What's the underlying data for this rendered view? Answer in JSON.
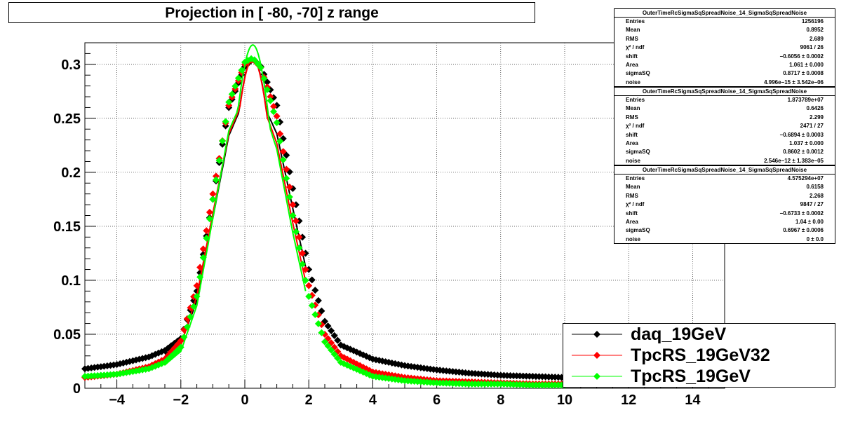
{
  "chart_data": {
    "type": "scatter",
    "title": "Projection in [ -80, -70] z range",
    "xlabel": "",
    "ylabel": "",
    "xlim": [
      -5,
      15
    ],
    "ylim": [
      0,
      0.32
    ],
    "x_ticks": [
      "−4",
      "−2",
      "0",
      "2",
      "4",
      "6",
      "8",
      "10",
      "12",
      "14"
    ],
    "x_tick_values": [
      -4,
      -2,
      0,
      2,
      4,
      6,
      8,
      10,
      12,
      14
    ],
    "y_ticks": [
      "0",
      "0.05",
      "0.1",
      "0.15",
      "0.2",
      "0.25",
      "0.3"
    ],
    "y_tick_values": [
      0,
      0.05,
      0.1,
      0.15,
      0.2,
      0.25,
      0.3
    ],
    "grid": true,
    "legend_position": "bottom-right",
    "series": [
      {
        "name": "daq_19GeV",
        "color": "#000000",
        "x": [
          -5,
          -4,
          -3,
          -2.5,
          -2,
          -1.5,
          -1,
          -0.5,
          0,
          0.25,
          0.5,
          1,
          1.5,
          2,
          2.5,
          3,
          4,
          5,
          6,
          7,
          8,
          9,
          10
        ],
        "y": [
          0.018,
          0.022,
          0.029,
          0.035,
          0.046,
          0.09,
          0.175,
          0.26,
          0.298,
          0.305,
          0.298,
          0.262,
          0.185,
          0.11,
          0.062,
          0.04,
          0.027,
          0.021,
          0.017,
          0.014,
          0.012,
          0.011,
          0.01
        ],
        "fit_peak": 0.306
      },
      {
        "name": "TpcRS_19GeV32",
        "color": "#ff0000",
        "x": [
          -5,
          -4,
          -3,
          -2.5,
          -2,
          -1.5,
          -1,
          -0.5,
          0,
          0.25,
          0.5,
          1,
          1.5,
          2,
          2.5,
          3,
          4,
          5,
          6,
          7,
          8,
          9,
          10
        ],
        "y": [
          0.01,
          0.013,
          0.02,
          0.027,
          0.044,
          0.095,
          0.18,
          0.262,
          0.3,
          0.305,
          0.297,
          0.252,
          0.17,
          0.095,
          0.05,
          0.03,
          0.015,
          0.01,
          0.007,
          0.006,
          0.005,
          0.004,
          0.004
        ],
        "fit_peak": 0.305
      },
      {
        "name": "TpcRS_19GeV",
        "color": "#00ff00",
        "x": [
          -5,
          -4,
          -3,
          -2.5,
          -2,
          -1.5,
          -1,
          -0.5,
          0,
          0.25,
          0.5,
          1,
          1.5,
          2,
          2.5,
          3,
          4,
          5,
          6,
          7,
          8,
          9,
          10
        ],
        "y": [
          0.011,
          0.013,
          0.018,
          0.024,
          0.038,
          0.085,
          0.175,
          0.265,
          0.302,
          0.306,
          0.297,
          0.246,
          0.16,
          0.085,
          0.043,
          0.024,
          0.011,
          0.007,
          0.005,
          0.004,
          0.004,
          0.003,
          0.003
        ],
        "fit_peak": 0.318
      }
    ],
    "stats": [
      {
        "title": "OuterTimeRcSigmaSqSpreadNoise_14_SigmaSqSpreadNoise",
        "rows": [
          {
            "k": "Entries",
            "v": "1256196"
          },
          {
            "k": "Mean",
            "v": "0.8952"
          },
          {
            "k": "RMS",
            "v": "2.689"
          },
          {
            "k": "χ² / ndf",
            "v": "9061 / 26"
          },
          {
            "k": "shift",
            "v": "−0.6056 ± 0.0002"
          },
          {
            "k": "Area",
            "v": "1.061 ± 0.000"
          },
          {
            "k": "sigmaSQ",
            "v": "0.8717 ± 0.0008"
          },
          {
            "k": "noise",
            "v": "4.996e−15 ± 3.542e−06"
          }
        ]
      },
      {
        "title": "OuterTimeRcSigmaSqSpreadNoise_14_SigmaSqSpreadNoise",
        "rows": [
          {
            "k": "Entries",
            "v": "1.873789e+07"
          },
          {
            "k": "Mean",
            "v": "0.6426"
          },
          {
            "k": "RMS",
            "v": "2.299"
          },
          {
            "k": "χ² / ndf",
            "v": "2471 / 27"
          },
          {
            "k": "shift",
            "v": "−0.6894 ± 0.0003"
          },
          {
            "k": "Area",
            "v": "1.037 ± 0.000"
          },
          {
            "k": "sigmaSQ",
            "v": "0.8602 ± 0.0012"
          },
          {
            "k": "noise",
            "v": "2.546e−12 ± 1.383e−05"
          }
        ]
      },
      {
        "title": "OuterTimeRcSigmaSqSpreadNoise_14_SigmaSqSpreadNoise",
        "rows": [
          {
            "k": "Entries",
            "v": "4.575294e+07"
          },
          {
            "k": "Mean",
            "v": "0.6158"
          },
          {
            "k": "RMS",
            "v": "2.268"
          },
          {
            "k": "χ² / ndf",
            "v": "9847 / 27"
          },
          {
            "k": "shift",
            "v": "−0.6733 ± 0.0002"
          },
          {
            "k": "Area",
            "v": "1.04 ± 0.00"
          },
          {
            "k": "sigmaSQ",
            "v": "0.6967 ± 0.0006"
          },
          {
            "k": "noise",
            "v": "0 ± 0.0"
          }
        ]
      }
    ]
  }
}
